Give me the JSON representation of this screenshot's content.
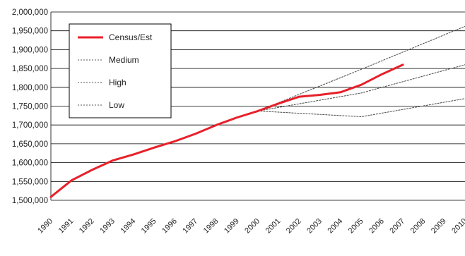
{
  "chart_data": {
    "type": "line",
    "title": "",
    "xlabel": "",
    "ylabel": "",
    "x": [
      1990,
      1991,
      1992,
      1993,
      1994,
      1995,
      1996,
      1997,
      1998,
      1999,
      2000,
      2001,
      2002,
      2003,
      2004,
      2005,
      2006,
      2007,
      2008,
      2009,
      2010
    ],
    "x_tick_labels": [
      "1990",
      "1991",
      "1992",
      "1993",
      "1994",
      "1995",
      "1996",
      "1997",
      "1998",
      "1999",
      "2000",
      "2001",
      "2002",
      "2003",
      "2004",
      "2005",
      "2006",
      "2007",
      "2008",
      "2009",
      "2010"
    ],
    "ylim": [
      1500000,
      2000000
    ],
    "y_ticks": [
      1500000,
      1550000,
      1600000,
      1650000,
      1700000,
      1750000,
      1800000,
      1850000,
      1900000,
      1950000,
      2000000
    ],
    "y_tick_labels": [
      "1,500,000",
      "1,550,000",
      "1,600,000",
      "1,650,000",
      "1,700,000",
      "1,750,000",
      "1,800,000",
      "1,850,000",
      "1,900,000",
      "1,950,000",
      "2,000,000"
    ],
    "grid": true,
    "legend_position": "top-left",
    "series": [
      {
        "name": "Census/Est",
        "style": "solid",
        "color": "#e8202a",
        "x": [
          1990,
          1991,
          1992,
          1993,
          1994,
          1995,
          1996,
          1997,
          1998,
          1999,
          2000,
          2001,
          2002,
          2003,
          2004,
          2005,
          2006,
          2007
        ],
        "y": [
          1509000,
          1553000,
          1581000,
          1606000,
          1622000,
          1640000,
          1657000,
          1677000,
          1700000,
          1720000,
          1737000,
          1757000,
          1775000,
          1780000,
          1787000,
          1807000,
          1835000,
          1860000
        ]
      },
      {
        "name": "Medium",
        "style": "dotted",
        "color": "#555555",
        "x": [
          2000,
          2005,
          2010
        ],
        "y": [
          1737000,
          1785000,
          1860000
        ]
      },
      {
        "name": "High",
        "style": "dotted",
        "color": "#555555",
        "x": [
          2000,
          2005,
          2010
        ],
        "y": [
          1737000,
          1848000,
          1962000
        ]
      },
      {
        "name": "Low",
        "style": "dotted",
        "color": "#555555",
        "x": [
          2000,
          2005,
          2010
        ],
        "y": [
          1737000,
          1722000,
          1770000
        ]
      }
    ]
  },
  "colors": {
    "grid": "#000000",
    "census": "#e8202a",
    "projection": "#555555",
    "text": "#222222"
  }
}
